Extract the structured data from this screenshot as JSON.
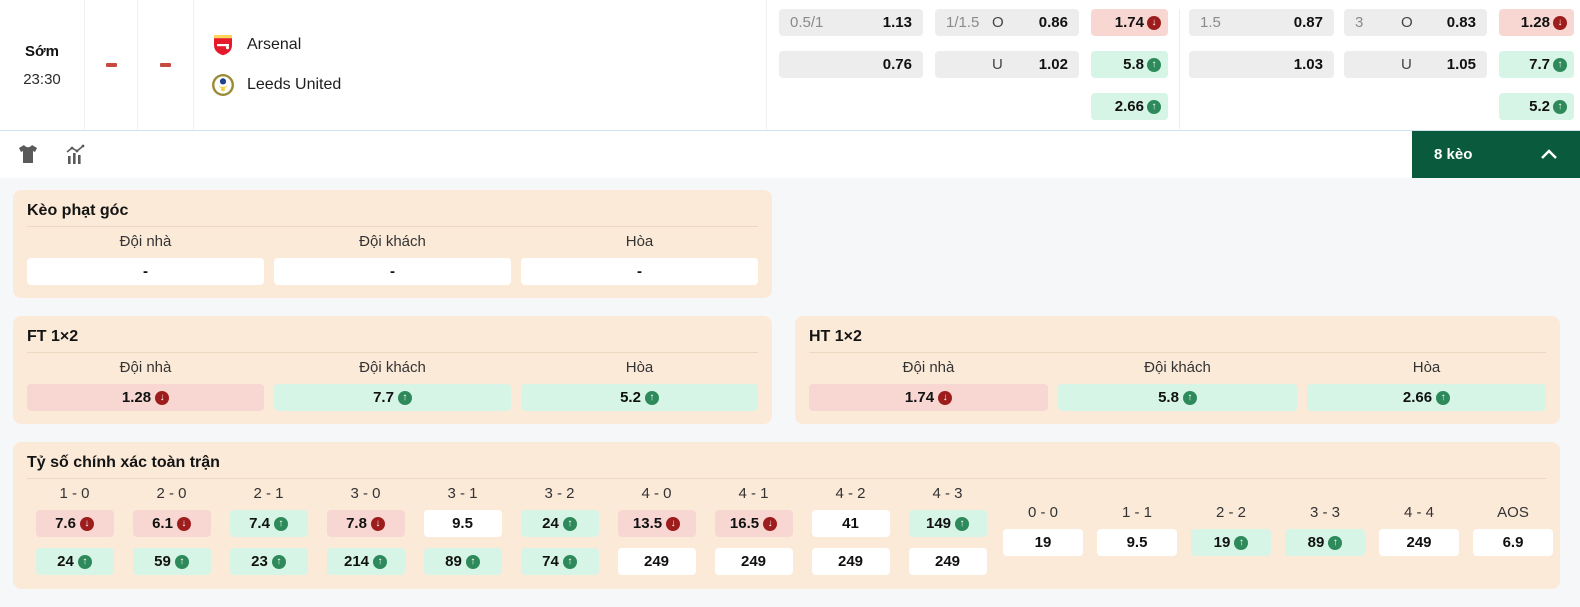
{
  "colors": {
    "card_bg": "#fcead9",
    "odds_up_bg": "#d6f5e6",
    "odds_down_bg": "#f8d7d3",
    "odds_neutral_bg": "#ededed",
    "trend_up_icon": "#2e8a5a",
    "trend_down_icon": "#9d1d1d",
    "keo_button_bg": "#0a5b3d",
    "score_dash": "#c64a3f"
  },
  "match": {
    "time_label": "Sớm",
    "time": "23:30",
    "home_score": "-",
    "away_score": "-",
    "home_team": "Arsenal",
    "away_team": "Leeds United"
  },
  "odds_header": {
    "left": {
      "handicap": {
        "line1": {
          "hdp": "0.5/1",
          "value": "1.13"
        },
        "line2": {
          "hdp": "",
          "value": "0.76"
        }
      },
      "ou": {
        "over": {
          "line": "1/1.5",
          "side": "O",
          "value": "0.86"
        },
        "under": {
          "line": "",
          "side": "U",
          "value": "1.02"
        }
      },
      "x12": [
        {
          "value": "1.74",
          "trend": "down"
        },
        {
          "value": "5.8",
          "trend": "up"
        },
        {
          "value": "2.66",
          "trend": "up"
        }
      ]
    },
    "right": {
      "handicap": {
        "line1": {
          "hdp": "1.5",
          "value": "0.87"
        },
        "line2": {
          "hdp": "",
          "value": "1.03"
        }
      },
      "ou": {
        "over": {
          "line": "3",
          "side": "O",
          "value": "0.83"
        },
        "under": {
          "line": "",
          "side": "U",
          "value": "1.05"
        }
      },
      "x12": [
        {
          "value": "1.28",
          "trend": "down"
        },
        {
          "value": "7.7",
          "trend": "up"
        },
        {
          "value": "5.2",
          "trend": "up"
        }
      ]
    }
  },
  "toolbar": {
    "keo_button_label": "8 kèo"
  },
  "sections": {
    "corner": {
      "title": "Kèo phạt góc",
      "columns": [
        {
          "label": "Đội nhà",
          "value": "-",
          "trend": "none"
        },
        {
          "label": "Đội khách",
          "value": "-",
          "trend": "none"
        },
        {
          "label": "Hòa",
          "value": "-",
          "trend": "none"
        }
      ]
    },
    "ft_1x2": {
      "title": "FT 1×2",
      "columns": [
        {
          "label": "Đội nhà",
          "value": "1.28",
          "trend": "down"
        },
        {
          "label": "Đội khách",
          "value": "7.7",
          "trend": "up"
        },
        {
          "label": "Hòa",
          "value": "5.2",
          "trend": "up"
        }
      ]
    },
    "ht_1x2": {
      "title": "HT 1×2",
      "columns": [
        {
          "label": "Đội nhà",
          "value": "1.74",
          "trend": "down"
        },
        {
          "label": "Đội khách",
          "value": "5.8",
          "trend": "up"
        },
        {
          "label": "Hòa",
          "value": "2.66",
          "trend": "up"
        }
      ]
    },
    "exact_score": {
      "title": "Tỷ số chính xác toàn trận",
      "score_columns": [
        {
          "label": "1 - 0",
          "top": {
            "value": "7.6",
            "trend": "down"
          },
          "bottom": {
            "value": "24",
            "trend": "up"
          }
        },
        {
          "label": "2 - 0",
          "top": {
            "value": "6.1",
            "trend": "down"
          },
          "bottom": {
            "value": "59",
            "trend": "up"
          }
        },
        {
          "label": "2 - 1",
          "top": {
            "value": "7.4",
            "trend": "up"
          },
          "bottom": {
            "value": "23",
            "trend": "up"
          }
        },
        {
          "label": "3 - 0",
          "top": {
            "value": "7.8",
            "trend": "down"
          },
          "bottom": {
            "value": "214",
            "trend": "up"
          }
        },
        {
          "label": "3 - 1",
          "top": {
            "value": "9.5",
            "trend": "none"
          },
          "bottom": {
            "value": "89",
            "trend": "up"
          }
        },
        {
          "label": "3 - 2",
          "top": {
            "value": "24",
            "trend": "up"
          },
          "bottom": {
            "value": "74",
            "trend": "up"
          }
        },
        {
          "label": "4 - 0",
          "top": {
            "value": "13.5",
            "trend": "down"
          },
          "bottom": {
            "value": "249",
            "trend": "none"
          }
        },
        {
          "label": "4 - 1",
          "top": {
            "value": "16.5",
            "trend": "down"
          },
          "bottom": {
            "value": "249",
            "trend": "none"
          }
        },
        {
          "label": "4 - 2",
          "top": {
            "value": "41",
            "trend": "none"
          },
          "bottom": {
            "value": "249",
            "trend": "none"
          }
        },
        {
          "label": "4 - 3",
          "top": {
            "value": "149",
            "trend": "up"
          },
          "bottom": {
            "value": "249",
            "trend": "none"
          }
        }
      ],
      "draw_columns": [
        {
          "label": "0 - 0",
          "value": "19",
          "trend": "none"
        },
        {
          "label": "1 - 1",
          "value": "9.5",
          "trend": "none"
        },
        {
          "label": "2 - 2",
          "value": "19",
          "trend": "up"
        },
        {
          "label": "3 - 3",
          "value": "89",
          "trend": "up"
        },
        {
          "label": "4 - 4",
          "value": "249",
          "trend": "none"
        },
        {
          "label": "AOS",
          "value": "6.9",
          "trend": "none"
        }
      ]
    }
  }
}
